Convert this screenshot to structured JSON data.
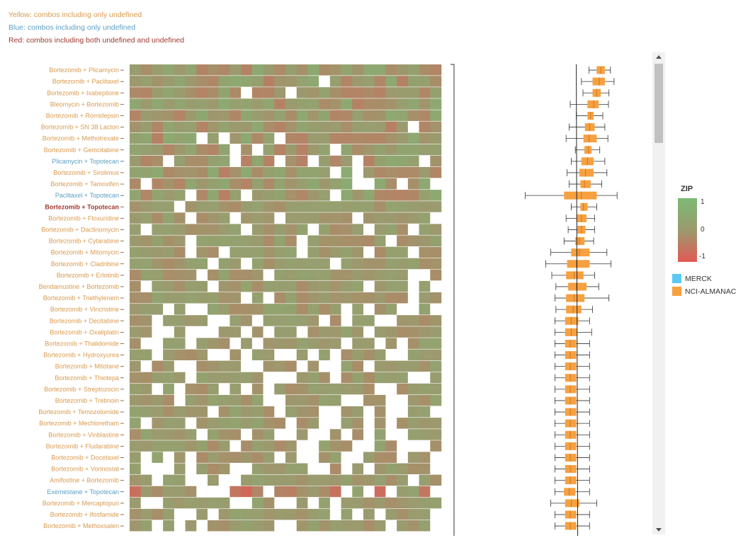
{
  "legend_notes": {
    "yellow": "Yellow: combos including only undefined",
    "blue": "Blue: combos including only undefined",
    "red": "Red: combos including both undefined and undefined"
  },
  "colors": {
    "yellow_label": "#d99a4e",
    "blue_label": "#5b9fc5",
    "red_label": "#a03a32",
    "merck": "#5bc8f5",
    "nci_almanac": "#f7a040",
    "zip_high": "#7cba74",
    "zip_mid": "#9b9a6e",
    "zip_low": "#e05a55"
  },
  "zip_legend": {
    "title": "ZIP",
    "ticks": [
      "1",
      "0",
      "-1"
    ]
  },
  "source_legend": [
    {
      "label": "MERCK",
      "color": "#5bc8f5"
    },
    {
      "label": "NCI-ALMANAC",
      "color": "#f7a040"
    }
  ],
  "chart_data": {
    "type": "heatmap",
    "color_scale": {
      "min": -1,
      "max": 1
    },
    "heatmap_columns": 28,
    "rows": [
      {
        "label": "Bortezomib + Plicamycin",
        "group": "yellow",
        "box": {
          "min": 0.55,
          "q1": 0.7,
          "median": 0.78,
          "q3": 0.86,
          "max": 0.97
        }
      },
      {
        "label": "Bortezomib + Paclitaxel",
        "group": "yellow",
        "box": {
          "min": 0.4,
          "q1": 0.62,
          "median": 0.75,
          "q3": 0.86,
          "max": 1.04
        }
      },
      {
        "label": "Bortezomib + Ixabepilone",
        "group": "yellow",
        "box": {
          "min": 0.43,
          "q1": 0.62,
          "median": 0.7,
          "q3": 0.78,
          "max": 0.94
        }
      },
      {
        "label": "Bleomycin + Bortezomib",
        "group": "yellow",
        "box": {
          "min": 0.18,
          "q1": 0.52,
          "median": 0.64,
          "q3": 0.74,
          "max": 0.93
        }
      },
      {
        "label": "Bortezomib + Romidepsin",
        "group": "yellow",
        "box": {
          "min": 0.3,
          "q1": 0.52,
          "median": 0.58,
          "q3": 0.64,
          "max": 0.82
        }
      },
      {
        "label": "Bortezomib + SN 38 Lacton",
        "group": "yellow",
        "box": {
          "min": 0.16,
          "q1": 0.47,
          "median": 0.56,
          "q3": 0.66,
          "max": 0.86
        }
      },
      {
        "label": "Bortezomib + Methotrexate",
        "group": "yellow",
        "box": {
          "min": 0.1,
          "q1": 0.44,
          "median": 0.55,
          "q3": 0.7,
          "max": 0.92
        }
      },
      {
        "label": "Bortezomib + Gemcitabine",
        "group": "yellow",
        "box": {
          "min": 0.28,
          "q1": 0.46,
          "median": 0.54,
          "q3": 0.6,
          "max": 0.76
        }
      },
      {
        "label": "Plicamycin + Topotecan",
        "group": "blue",
        "box": {
          "min": 0.2,
          "q1": 0.4,
          "median": 0.52,
          "q3": 0.64,
          "max": 0.86
        }
      },
      {
        "label": "Bortezomib + Sirolimus",
        "group": "yellow",
        "box": {
          "min": 0.12,
          "q1": 0.36,
          "median": 0.48,
          "q3": 0.64,
          "max": 0.9
        }
      },
      {
        "label": "Bortezomib + Tamoxifen",
        "group": "yellow",
        "box": {
          "min": 0.16,
          "q1": 0.38,
          "median": 0.46,
          "q3": 0.58,
          "max": 0.8
        }
      },
      {
        "label": "Paclitaxel + Topotecan",
        "group": "blue",
        "box": {
          "min": -0.7,
          "q1": 0.06,
          "median": 0.4,
          "q3": 0.7,
          "max": 1.1
        }
      },
      {
        "label": "Bortezomib + Topotecan",
        "group": "red",
        "box": {
          "min": 0.2,
          "q1": 0.38,
          "median": 0.44,
          "q3": 0.52,
          "max": 0.7
        }
      },
      {
        "label": "Bortezomib + Floxuridine",
        "group": "yellow",
        "box": {
          "min": 0.1,
          "q1": 0.3,
          "median": 0.4,
          "q3": 0.5,
          "max": 0.66
        }
      },
      {
        "label": "Bortezomib + Dactinomycin",
        "group": "yellow",
        "box": {
          "min": 0.14,
          "q1": 0.32,
          "median": 0.4,
          "q3": 0.48,
          "max": 0.66
        }
      },
      {
        "label": "Bortezomib + Cytarabine",
        "group": "yellow",
        "box": {
          "min": 0.06,
          "q1": 0.28,
          "median": 0.36,
          "q3": 0.46,
          "max": 0.64
        }
      },
      {
        "label": "Bortezomib + Mitomycin",
        "group": "yellow",
        "box": {
          "min": -0.2,
          "q1": 0.2,
          "median": 0.36,
          "q3": 0.56,
          "max": 0.9
        }
      },
      {
        "label": "Bortezomib + Cladribine",
        "group": "yellow",
        "box": {
          "min": -0.3,
          "q1": 0.12,
          "median": 0.3,
          "q3": 0.56,
          "max": 0.98
        }
      },
      {
        "label": "Bortezomib + Erlotinib",
        "group": "yellow",
        "box": {
          "min": -0.18,
          "q1": 0.1,
          "median": 0.26,
          "q3": 0.44,
          "max": 0.66
        }
      },
      {
        "label": "Bendamustine + Bortezomib",
        "group": "yellow",
        "box": {
          "min": -0.1,
          "q1": 0.14,
          "median": 0.3,
          "q3": 0.5,
          "max": 0.74
        }
      },
      {
        "label": "Bortezomib + Triethylenem",
        "group": "yellow",
        "box": {
          "min": -0.12,
          "q1": 0.1,
          "median": 0.26,
          "q3": 0.46,
          "max": 0.94
        }
      },
      {
        "label": "Bortezomib + Vincristine",
        "group": "yellow",
        "box": {
          "min": -0.1,
          "q1": 0.1,
          "median": 0.24,
          "q3": 0.4,
          "max": 0.62
        }
      },
      {
        "label": "Bortezomib + Decitabine",
        "group": "yellow",
        "box": {
          "min": -0.12,
          "q1": 0.08,
          "median": 0.2,
          "q3": 0.34,
          "max": 0.56
        }
      },
      {
        "label": "Bortezomib + Oxaliplatin",
        "group": "yellow",
        "box": {
          "min": -0.12,
          "q1": 0.08,
          "median": 0.2,
          "q3": 0.32,
          "max": 0.6
        }
      },
      {
        "label": "Bortezomib + Thalidomide",
        "group": "yellow",
        "box": {
          "min": -0.12,
          "q1": 0.08,
          "median": 0.18,
          "q3": 0.3,
          "max": 0.56
        }
      },
      {
        "label": "Bortezomib + Hydroxyurea",
        "group": "yellow",
        "box": {
          "min": -0.12,
          "q1": 0.08,
          "median": 0.18,
          "q3": 0.3,
          "max": 0.56
        }
      },
      {
        "label": "Bortezomib + Mitotane",
        "group": "yellow",
        "box": {
          "min": -0.12,
          "q1": 0.08,
          "median": 0.18,
          "q3": 0.3,
          "max": 0.56
        }
      },
      {
        "label": "Bortezomib + Thiotepa",
        "group": "yellow",
        "box": {
          "min": -0.12,
          "q1": 0.08,
          "median": 0.18,
          "q3": 0.3,
          "max": 0.56
        }
      },
      {
        "label": "Bortezomib + Streptozocin",
        "group": "yellow",
        "box": {
          "min": -0.12,
          "q1": 0.08,
          "median": 0.18,
          "q3": 0.3,
          "max": 0.56
        }
      },
      {
        "label": "Bortezomib + Tretinoin",
        "group": "yellow",
        "box": {
          "min": -0.12,
          "q1": 0.08,
          "median": 0.18,
          "q3": 0.3,
          "max": 0.56
        }
      },
      {
        "label": "Bortezomib + Temozolomide",
        "group": "yellow",
        "box": {
          "min": -0.12,
          "q1": 0.08,
          "median": 0.18,
          "q3": 0.3,
          "max": 0.56
        }
      },
      {
        "label": "Bortezomib + Mechloretham",
        "group": "yellow",
        "box": {
          "min": -0.12,
          "q1": 0.08,
          "median": 0.18,
          "q3": 0.3,
          "max": 0.56
        }
      },
      {
        "label": "Bortezomib + Vinblastine",
        "group": "yellow",
        "box": {
          "min": -0.12,
          "q1": 0.08,
          "median": 0.18,
          "q3": 0.3,
          "max": 0.56
        }
      },
      {
        "label": "Bortezomib + Fludarabine",
        "group": "yellow",
        "box": {
          "min": -0.12,
          "q1": 0.08,
          "median": 0.18,
          "q3": 0.3,
          "max": 0.56
        }
      },
      {
        "label": "Bortezomib + Docetaxel",
        "group": "yellow",
        "box": {
          "min": -0.12,
          "q1": 0.08,
          "median": 0.18,
          "q3": 0.3,
          "max": 0.56
        }
      },
      {
        "label": "Bortezomib + Vorinostat",
        "group": "yellow",
        "box": {
          "min": -0.12,
          "q1": 0.08,
          "median": 0.18,
          "q3": 0.3,
          "max": 0.56
        }
      },
      {
        "label": "Amifostine + Bortezomib",
        "group": "yellow",
        "box": {
          "min": -0.12,
          "q1": 0.08,
          "median": 0.18,
          "q3": 0.3,
          "max": 0.56
        }
      },
      {
        "label": "Exemestane + Topotecan",
        "group": "blue",
        "box": {
          "min": -0.12,
          "q1": 0.06,
          "median": 0.16,
          "q3": 0.28,
          "max": 0.56
        }
      },
      {
        "label": "Bortezomib + Mercaptopuri",
        "group": "yellow",
        "box": {
          "min": -0.2,
          "q1": 0.08,
          "median": 0.2,
          "q3": 0.36,
          "max": 0.7
        }
      },
      {
        "label": "Bortezomib + Ifosfamide",
        "group": "yellow",
        "box": {
          "min": -0.12,
          "q1": 0.08,
          "median": 0.18,
          "q3": 0.3,
          "max": 0.56
        }
      },
      {
        "label": "Bortezomib + Methoxsalen",
        "group": "yellow",
        "box": {
          "min": -0.12,
          "q1": 0.08,
          "median": 0.18,
          "q3": 0.3,
          "max": 0.56
        }
      }
    ],
    "box_x_range": [
      -1,
      1.5
    ],
    "box_series": "NCI-ALMANAC",
    "reference_line": 0.3
  }
}
